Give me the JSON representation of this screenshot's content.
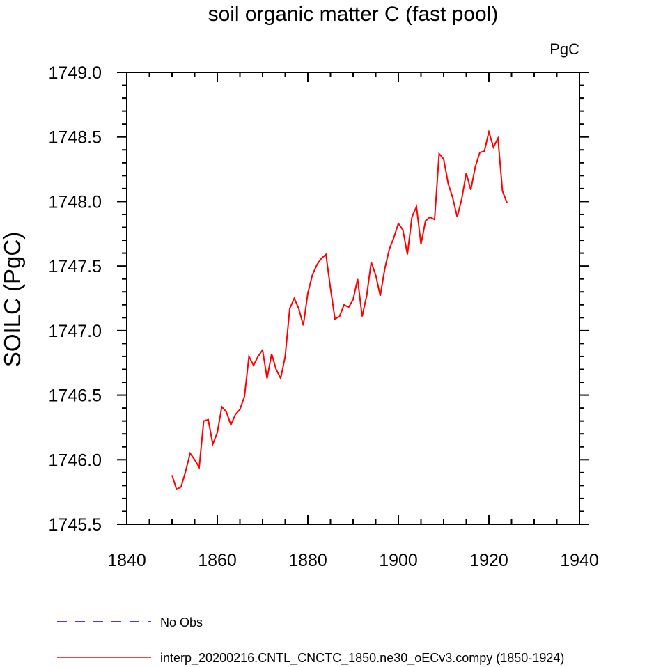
{
  "chart_data": {
    "type": "line",
    "title": "soil organic matter C (fast pool)",
    "units": "PgC",
    "xlabel": "",
    "ylabel": "SOILC  (PgC)",
    "xlim": [
      1840,
      1940
    ],
    "ylim": [
      1745.5,
      1749.0
    ],
    "xticks": [
      1840,
      1860,
      1880,
      1900,
      1920,
      1940
    ],
    "yticks": [
      1745.5,
      1746.0,
      1746.5,
      1747.0,
      1747.5,
      1748.0,
      1748.5,
      1749.0
    ],
    "ytick_labels": [
      "1745.5",
      "1746.0",
      "1746.5",
      "1747.0",
      "1747.5",
      "1748.0",
      "1748.5",
      "1749.0"
    ],
    "xtick_labels": [
      "1840",
      "1860",
      "1880",
      "1900",
      "1920",
      "1940"
    ],
    "grid": false,
    "legend_position": "bottom",
    "series": [
      {
        "name": "interp_20200216.CNTL_CNCTC_1850.ne30_oECv3.compy (1850-1924)",
        "color": "#ff0000",
        "style": "solid",
        "x": [
          1850,
          1851,
          1852,
          1853,
          1854,
          1855,
          1856,
          1857,
          1858,
          1859,
          1860,
          1861,
          1862,
          1863,
          1864,
          1865,
          1866,
          1867,
          1868,
          1869,
          1870,
          1871,
          1872,
          1873,
          1874,
          1875,
          1876,
          1877,
          1878,
          1879,
          1880,
          1881,
          1882,
          1883,
          1884,
          1885,
          1886,
          1887,
          1888,
          1889,
          1890,
          1891,
          1892,
          1893,
          1894,
          1895,
          1896,
          1897,
          1898,
          1899,
          1900,
          1901,
          1902,
          1903,
          1904,
          1905,
          1906,
          1907,
          1908,
          1909,
          1910,
          1911,
          1912,
          1913,
          1914,
          1915,
          1916,
          1917,
          1918,
          1919,
          1920,
          1921,
          1922,
          1923,
          1924
        ],
        "y": [
          1745.88,
          1745.77,
          1745.79,
          1745.91,
          1746.05,
          1746.0,
          1745.94,
          1746.3,
          1746.31,
          1746.12,
          1746.21,
          1746.41,
          1746.37,
          1746.27,
          1746.35,
          1746.39,
          1746.49,
          1746.8,
          1746.73,
          1746.8,
          1746.85,
          1746.63,
          1746.82,
          1746.7,
          1746.63,
          1746.8,
          1747.17,
          1747.25,
          1747.17,
          1747.04,
          1747.29,
          1747.43,
          1747.51,
          1747.56,
          1747.59,
          1747.33,
          1747.09,
          1747.11,
          1747.2,
          1747.18,
          1747.24,
          1747.4,
          1747.11,
          1747.27,
          1747.53,
          1747.43,
          1747.27,
          1747.48,
          1747.63,
          1747.72,
          1747.83,
          1747.78,
          1747.59,
          1747.88,
          1747.96,
          1747.67,
          1747.85,
          1747.88,
          1747.86,
          1748.37,
          1748.33,
          1748.14,
          1748.03,
          1747.88,
          1748.02,
          1748.22,
          1748.09,
          1748.27,
          1748.38,
          1748.39,
          1748.54,
          1748.42,
          1748.49,
          1748.08,
          1747.99
        ]
      },
      {
        "name": "No Obs",
        "color": "#0000cc",
        "style": "dashed",
        "x": [],
        "y": []
      }
    ]
  }
}
